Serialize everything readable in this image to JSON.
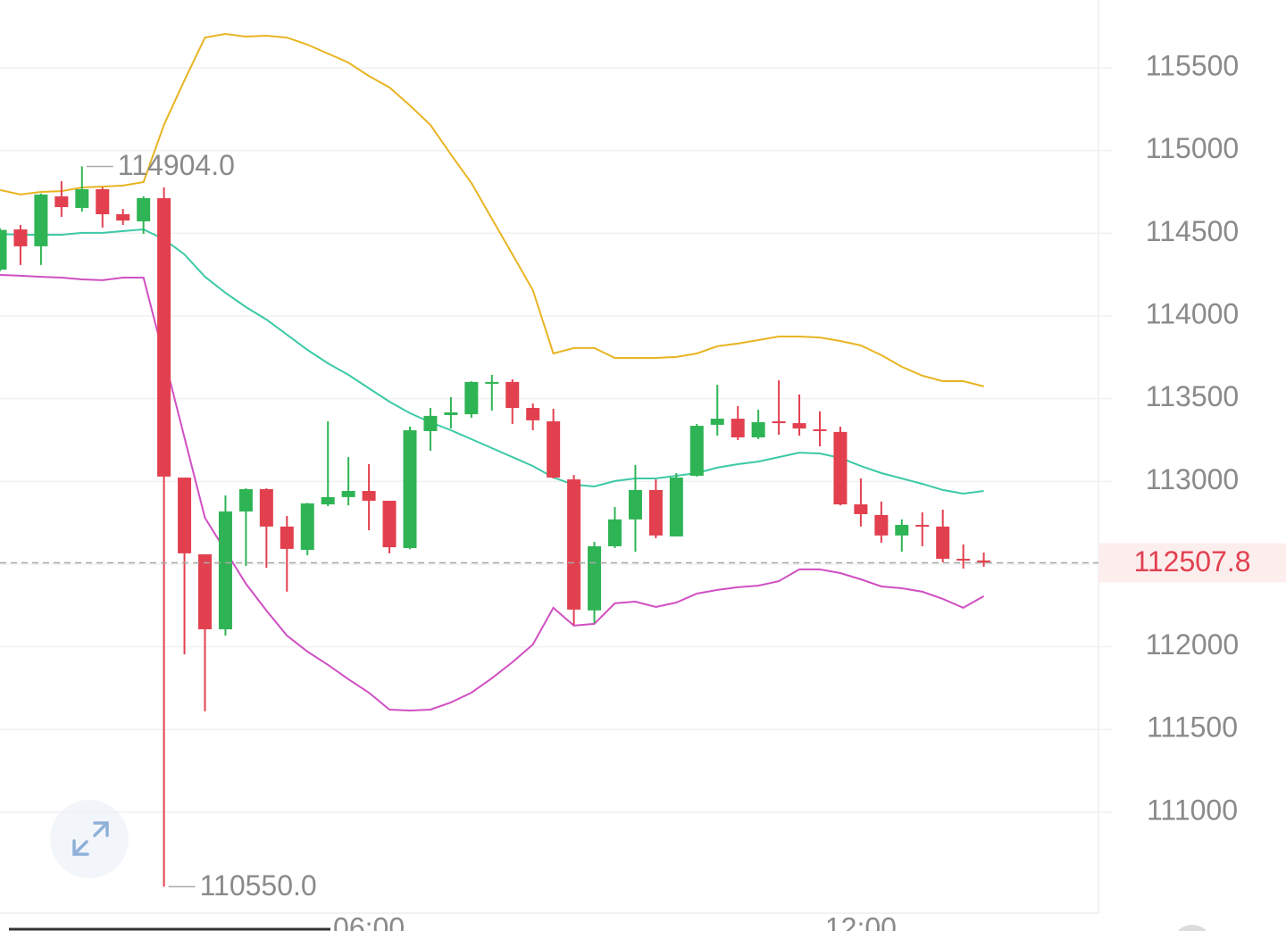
{
  "chart_data": {
    "type": "candlestick",
    "categories": [
      null,
      null,
      null,
      null,
      null,
      null,
      null,
      null,
      null,
      null,
      null,
      null,
      null,
      null,
      null,
      null,
      null,
      null,
      "06:00",
      null,
      null,
      null,
      null,
      null,
      null,
      null,
      null,
      null,
      null,
      null,
      null,
      null,
      null,
      null,
      null,
      null,
      null,
      null,
      null,
      null,
      null,
      null,
      "12:00",
      null,
      null,
      null,
      null,
      null,
      null
    ],
    "candles": {
      "open": [
        114280,
        114523,
        114421,
        114723,
        114653,
        114766,
        114615,
        114572,
        114712,
        113023,
        112559,
        112106,
        112818,
        112953,
        112727,
        112586,
        112861,
        112905,
        112942,
        112883,
        112597,
        113304,
        113401,
        113406,
        113590,
        113601,
        113444,
        113363,
        113012,
        112220,
        112608,
        112770,
        112948,
        112667,
        113034,
        113342,
        113379,
        113266,
        113363,
        113352,
        113315,
        113299,
        112861,
        112797,
        112673,
        112737,
        112727,
        112532,
        112522
      ],
      "high": [
        114530,
        114550,
        114740,
        114815,
        114904,
        114777,
        114647,
        114723,
        114777,
        113023,
        112559,
        112915,
        112958,
        112958,
        112791,
        112870,
        113363,
        113147,
        113104,
        112883,
        113331,
        113444,
        113509,
        113605,
        113644,
        113617,
        113471,
        113439,
        113039,
        112635,
        112845,
        113099,
        113012,
        113050,
        113347,
        113584,
        113455,
        113433,
        113611,
        113525,
        113423,
        113331,
        113018,
        112878,
        112770,
        112813,
        112829,
        112619,
        112570
      ],
      "low": [
        114270,
        114308,
        114308,
        114599,
        114631,
        114534,
        114550,
        114496,
        110550,
        111955,
        111610,
        112068,
        112489,
        112478,
        112333,
        112554,
        112850,
        112855,
        112705,
        112565,
        112590,
        113185,
        113320,
        113385,
        113428,
        113347,
        113309,
        113018,
        112133,
        112144,
        112597,
        112575,
        112656,
        112667,
        113029,
        113277,
        113250,
        113255,
        113282,
        113277,
        113212,
        112855,
        112727,
        112629,
        112575,
        112608,
        112511,
        112473,
        112484
      ],
      "close": [
        114520,
        114421,
        114734,
        114658,
        114766,
        114615,
        114577,
        114712,
        113029,
        112565,
        112106,
        112818,
        112953,
        112727,
        112592,
        112867,
        112905,
        112942,
        112883,
        112602,
        113309,
        113396,
        113417,
        113601,
        113601,
        113444,
        113369,
        113023,
        112225,
        112608,
        112770,
        112948,
        112673,
        113023,
        113336,
        113379,
        113266,
        113358,
        113352,
        113320,
        113304,
        112861,
        112802,
        112673,
        112737,
        112727,
        112532,
        112522,
        112507.8
      ],
      "up_color": "#2fb455",
      "down_color": "#e2404f"
    },
    "lines": [
      {
        "color": "#e8b422",
        "values": [
          114761,
          114734,
          114750,
          114755,
          114777,
          114782,
          114788,
          114809,
          115155,
          115424,
          115683,
          115705,
          115689,
          115694,
          115683,
          115640,
          115586,
          115532,
          115451,
          115381,
          115273,
          115155,
          114976,
          114804,
          114588,
          114372,
          114156,
          113773,
          113806,
          113806,
          113746,
          113746,
          113746,
          113752,
          113773,
          113817,
          113833,
          113854,
          113876,
          113876,
          113870,
          113849,
          113822,
          113763,
          113693,
          113639,
          113606,
          113606,
          113574
        ]
      },
      {
        "color": "#3cc9a6",
        "values": [
          114496,
          114491,
          114491,
          114491,
          114502,
          114502,
          114513,
          114523,
          114464,
          114372,
          114237,
          114140,
          114054,
          113978,
          113887,
          113795,
          113714,
          113644,
          113563,
          113482,
          113412,
          113358,
          113309,
          113255,
          113201,
          113147,
          113093,
          113023,
          112980,
          112969,
          113002,
          113018,
          113018,
          113034,
          113050,
          113083,
          113104,
          113120,
          113147,
          113174,
          113169,
          113142,
          113093,
          113050,
          113018,
          112985,
          112948,
          112926,
          112942
        ]
      },
      {
        "color": "#d04fc2",
        "values": [
          114248,
          114243,
          114237,
          114232,
          114221,
          114216,
          114232,
          114232,
          113752,
          113266,
          112780,
          112581,
          112381,
          112219,
          112068,
          111971,
          111891,
          111804,
          111723,
          111620,
          111615,
          111620,
          111664,
          111723,
          111810,
          111907,
          112014,
          112236,
          112128,
          112139,
          112263,
          112273,
          112241,
          112268,
          112322,
          112344,
          112360,
          112370,
          112397,
          112468,
          112468,
          112446,
          112408,
          112365,
          112354,
          112333,
          112290,
          112236,
          112306
        ]
      }
    ],
    "high_label": "114904.0",
    "low_label": "110550.0",
    "ylim": [
      110390,
      115910
    ],
    "yticks": [
      111000,
      111500,
      112000,
      112500,
      113000,
      113500,
      114000,
      114500,
      115000,
      115500
    ],
    "grid": true
  }
}
